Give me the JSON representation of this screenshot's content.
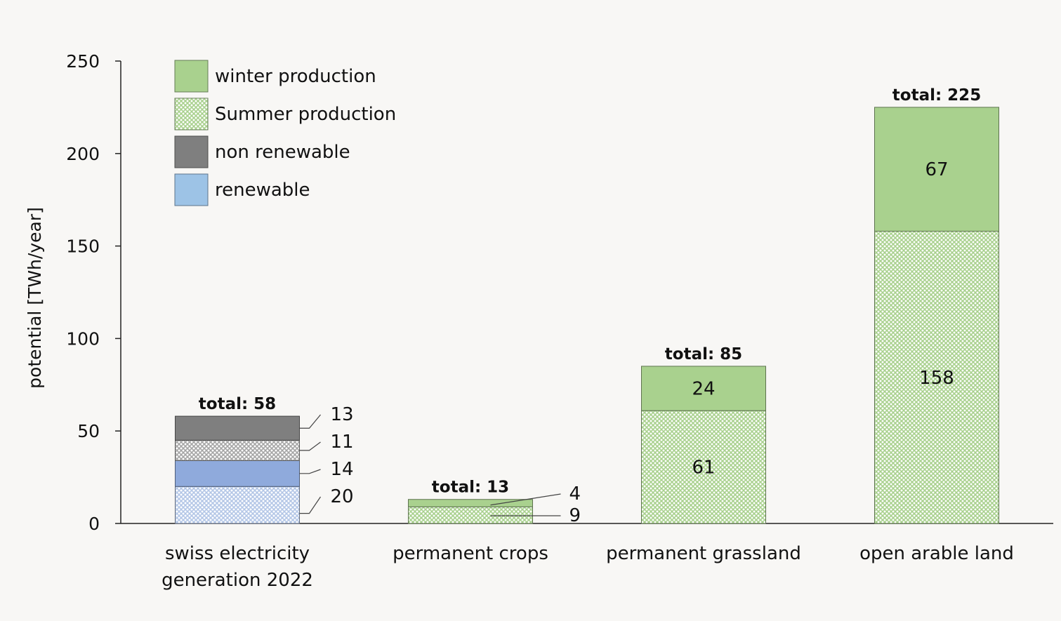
{
  "chart_data": {
    "type": "bar",
    "stacked": true,
    "ylabel": "potential [TWh/year]",
    "xlabel": "",
    "ylim": [
      0,
      250
    ],
    "yticks": [
      0,
      50,
      100,
      150,
      200,
      250
    ],
    "grid": false,
    "legend_position": "top-left",
    "categories": [
      "swiss electricity generation 2022",
      "permanent crops",
      "permanent grassland",
      "open arable land"
    ],
    "category_label_lines": [
      [
        "swiss electricity",
        "generation 2022"
      ],
      [
        "permanent crops"
      ],
      [
        "permanent grassland"
      ],
      [
        "open arable land"
      ]
    ],
    "legend": [
      {
        "label": "winter production",
        "color": "#a9d18e",
        "pattern": "solid"
      },
      {
        "label": "Summer production",
        "color": "#a9d18e",
        "pattern": "hatch"
      },
      {
        "label": "non renewable",
        "color": "#7f7f7f",
        "pattern": "solid"
      },
      {
        "label": "renewable",
        "color": "#9dc3e6",
        "pattern": "solid"
      }
    ],
    "stacks": [
      {
        "category": "swiss electricity generation 2022",
        "total_label": "total: 58",
        "segments": [
          {
            "value": 20,
            "label": "20",
            "color": "#b4c7e7",
            "pattern": "hatch"
          },
          {
            "value": 14,
            "label": "14",
            "color": "#8faadc",
            "pattern": "solid"
          },
          {
            "value": 11,
            "label": "11",
            "color": "#a6a6a6",
            "pattern": "hatch"
          },
          {
            "value": 13,
            "label": "13",
            "color": "#7f7f7f",
            "pattern": "solid"
          }
        ]
      },
      {
        "category": "permanent crops",
        "total_label": "total: 13",
        "segments": [
          {
            "value": 9,
            "label": "9",
            "color": "#a9d18e",
            "pattern": "hatch"
          },
          {
            "value": 4,
            "label": "4",
            "color": "#a9d18e",
            "pattern": "solid"
          }
        ]
      },
      {
        "category": "permanent grassland",
        "total_label": "total: 85",
        "segments": [
          {
            "value": 61,
            "label": "61",
            "color": "#a9d18e",
            "pattern": "hatch"
          },
          {
            "value": 24,
            "label": "24",
            "color": "#a9d18e",
            "pattern": "solid"
          }
        ]
      },
      {
        "category": "open arable land",
        "total_label": "total: 225",
        "segments": [
          {
            "value": 158,
            "label": "158",
            "color": "#a9d18e",
            "pattern": "hatch"
          },
          {
            "value": 67,
            "label": "67",
            "color": "#a9d18e",
            "pattern": "solid"
          }
        ]
      }
    ]
  }
}
